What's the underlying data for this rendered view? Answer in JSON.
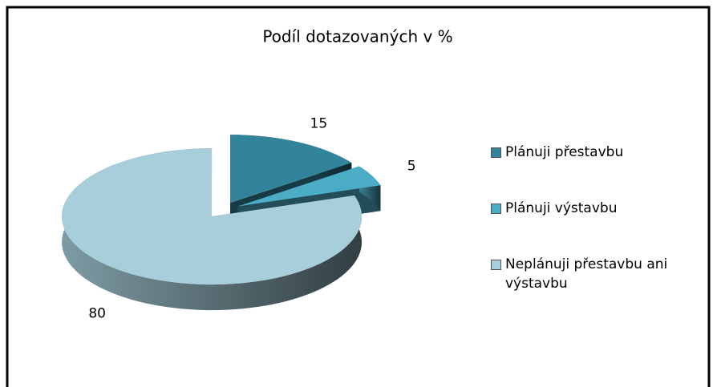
{
  "chart_data": {
    "type": "pie3d",
    "title": "Podíl dotazovaných v %",
    "categories": [
      "Plánuji přestavbu",
      "Plánuji výstavbu",
      "Neplánuji přestavbu ani výstavbu"
    ],
    "values": [
      15,
      5,
      80
    ],
    "colors": [
      "#31849b",
      "#4bacc6",
      "#a8cedb"
    ],
    "legend": "right"
  }
}
